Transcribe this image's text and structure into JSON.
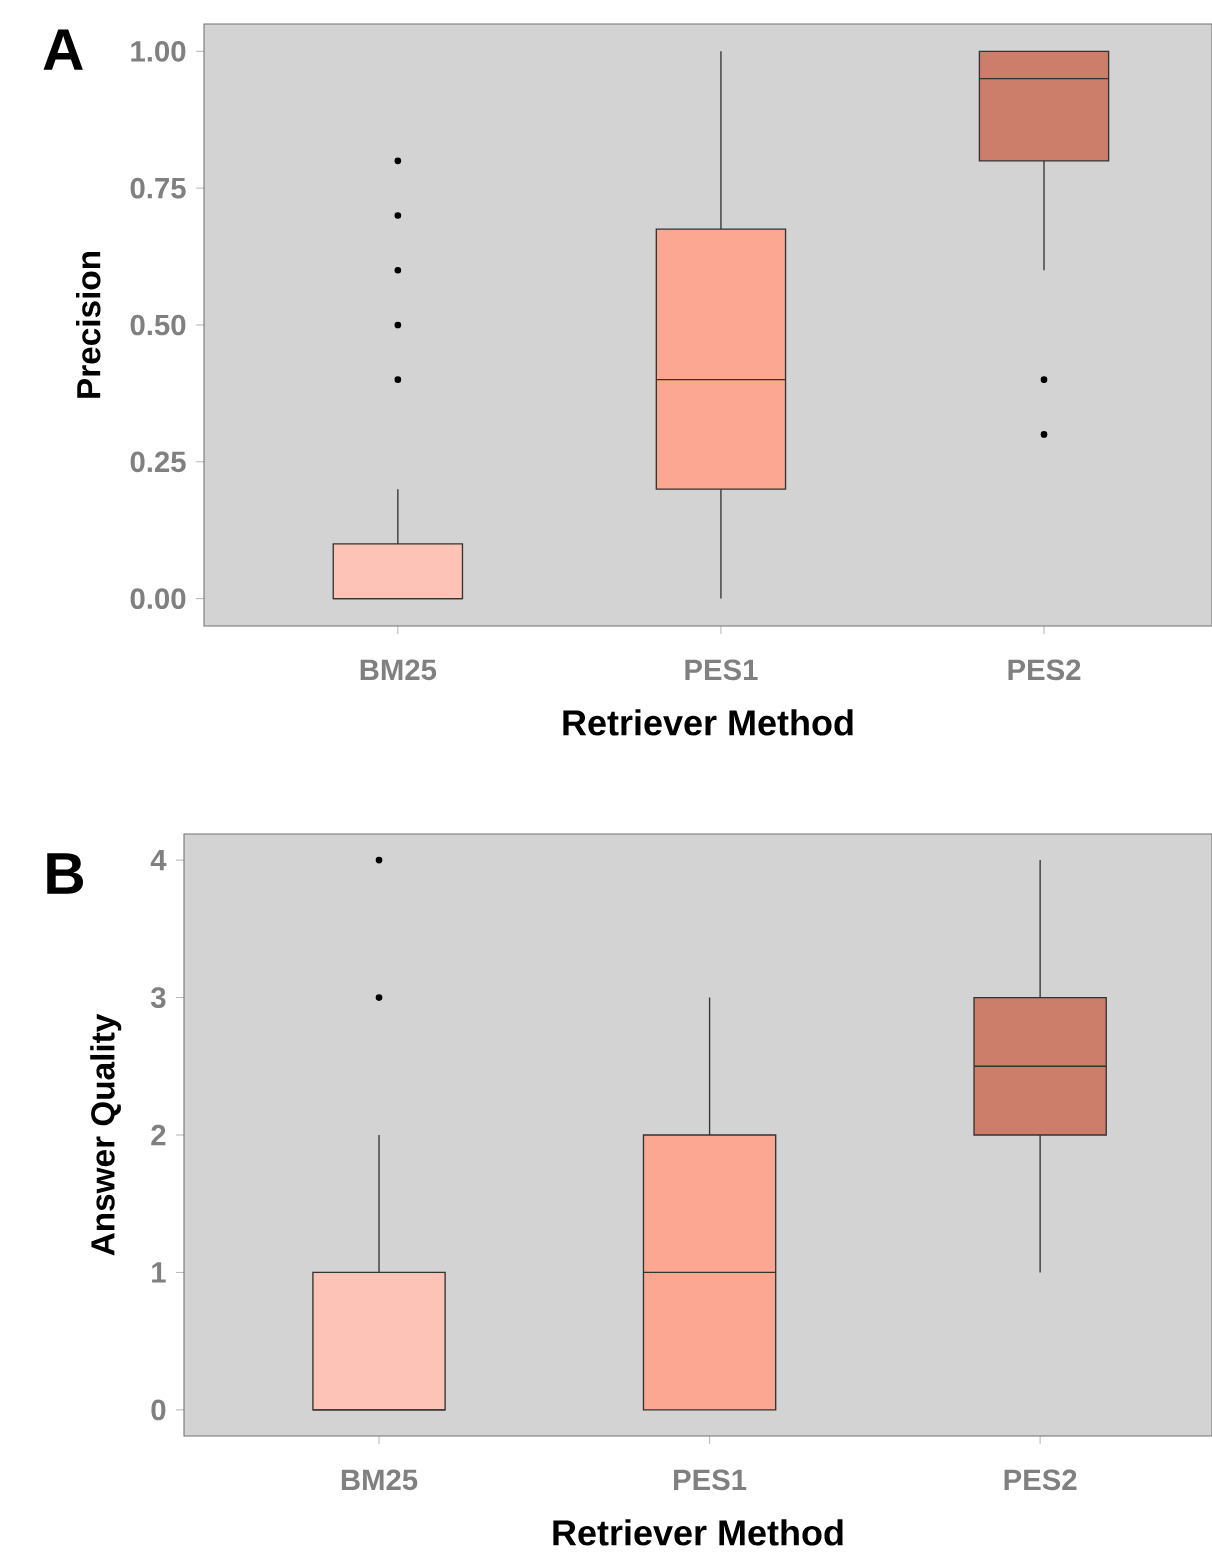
{
  "chart_data": [
    {
      "type": "box",
      "title": "A",
      "xlabel": "Retriever Method",
      "ylabel": "Precision",
      "categories": [
        "BM25",
        "PES1",
        "PES2"
      ],
      "colors": [
        "#fcc3b6",
        "#fca792",
        "#cc7e6b"
      ],
      "boxes": [
        {
          "low": 0,
          "q1": 0,
          "median": 0,
          "q3": 0.1,
          "high": 0.2,
          "outliers": [
            0.4,
            0.5,
            0.6,
            0.7,
            0.8
          ]
        },
        {
          "low": 0,
          "q1": 0.2,
          "median": 0.4,
          "q3": 0.675,
          "high": 1.0
        },
        {
          "low": 0.6,
          "q1": 0.8,
          "median": 0.95,
          "q3": 1.0,
          "high": 1.0,
          "outliers": [
            0.4,
            0.3
          ]
        }
      ],
      "ylim": [
        -0.05,
        1.05
      ],
      "yticks": [
        {
          "value": 0,
          "label": "0.00"
        },
        {
          "value": 0.25,
          "label": "0.25"
        },
        {
          "value": 0.5,
          "label": "0.50"
        },
        {
          "value": 0.75,
          "label": "0.75"
        },
        {
          "value": 1,
          "label": "1.00"
        }
      ]
    },
    {
      "type": "box",
      "title": "B",
      "xlabel": "Retriever Method",
      "ylabel": "Answer Quality",
      "categories": [
        "BM25",
        "PES1",
        "PES2"
      ],
      "colors": [
        "#fcc3b6",
        "#fca792",
        "#cc7e6b"
      ],
      "boxes": [
        {
          "low": 0,
          "q1": 0,
          "median": 0,
          "q3": 1,
          "high": 2,
          "outliers": [
            3,
            4
          ]
        },
        {
          "low": 0,
          "q1": 0,
          "median": 1,
          "q3": 2,
          "high": 3
        },
        {
          "low": 1,
          "q1": 2,
          "median": 2.5,
          "q3": 3,
          "high": 4
        }
      ],
      "ylim": [
        -0.19,
        4.19
      ],
      "yticks": [
        0,
        1,
        2,
        3,
        4
      ]
    }
  ]
}
